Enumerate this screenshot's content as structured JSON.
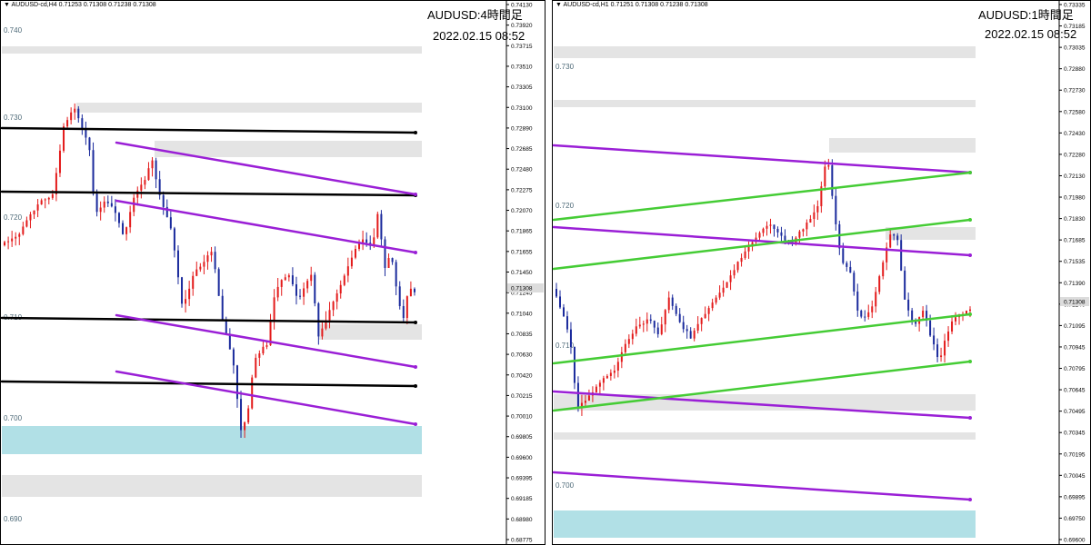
{
  "chart_data": [
    {
      "type": "candlestick",
      "symbol": "AUDUSD-cd,H4",
      "ohlc_header": "0.71253 0.71308 0.71238 0.71308",
      "title": "AUDUSD:4時間足",
      "timestamp": "2022.02.15 08:52",
      "ylim": [
        0.68775,
        0.7413
      ],
      "price_scale": [
        "0.74130",
        "0.73920",
        "0.73715",
        "0.73510",
        "0.73305",
        "0.73100",
        "0.72890",
        "0.72685",
        "0.72480",
        "0.72275",
        "0.72070",
        "0.71865",
        "0.71655",
        "0.71450",
        "0.71245",
        "0.71040",
        "0.70835",
        "0.70630",
        "0.70420",
        "0.70215",
        "0.70010",
        "0.69805",
        "0.69600",
        "0.69395",
        "0.69185",
        "0.68980",
        "0.68775"
      ],
      "level_labels": [
        "0.740",
        "0.730",
        "0.720",
        "0.710",
        "0.700",
        "0.690"
      ],
      "current_price": "0.71308",
      "colors": {
        "up": "#e31a1a",
        "down": "#1a2a9c",
        "purple": "#9a1fd6",
        "black": "#000000",
        "zone_gray": "#e4e4e4",
        "zone_blue": "#b1e0e6",
        "label_gray": "#4e6a78",
        "current_bg": "#dcdcdc"
      }
    },
    {
      "type": "candlestick",
      "symbol": "AUDUSD-cd,H1",
      "ohlc_header": "0.71251 0.71308 0.71238 0.71308",
      "title": "AUDUSD:1時間足",
      "timestamp": "2022.02.15 08:52",
      "ylim": [
        0.696,
        0.73335
      ],
      "price_scale": [
        "0.73335",
        "0.73185",
        "0.73035",
        "0.72880",
        "0.72730",
        "0.72580",
        "0.72430",
        "0.72280",
        "0.72130",
        "0.71980",
        "0.71830",
        "0.71685",
        "0.71535",
        "0.71390",
        "0.71240",
        "0.71095",
        "0.70945",
        "0.70795",
        "0.70645",
        "0.70495",
        "0.70345",
        "0.70195",
        "0.70045",
        "0.69895",
        "0.69750",
        "0.69600"
      ],
      "level_labels": [
        "0.730",
        "0.720",
        "0.710",
        "0.700"
      ],
      "current_price": "0.71308",
      "colors": {
        "up": "#e31a1a",
        "down": "#1a2a9c",
        "purple": "#9a1fd6",
        "green": "#45cc35",
        "zone_gray": "#e4e4e4",
        "zone_blue": "#b1e0e6",
        "label_gray": "#4e6a78",
        "current_bg": "#dcdcdc"
      }
    }
  ]
}
